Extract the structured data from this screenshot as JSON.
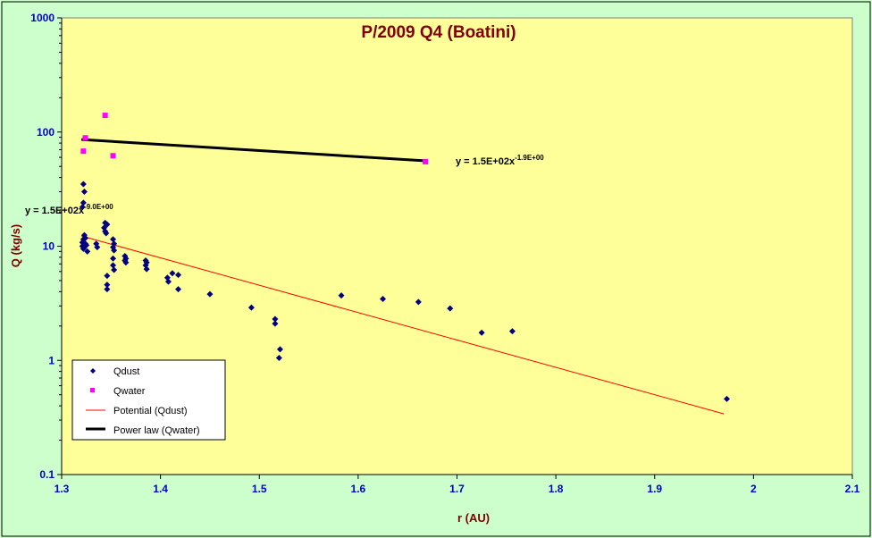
{
  "chart_data": {
    "type": "scatter",
    "title": "P/2009 Q4 (Boatini)",
    "xlabel": "r (AU)",
    "ylabel": "Q (kg/s)",
    "xlim": [
      1.3,
      2.1
    ],
    "ylim": [
      0.1,
      1000
    ],
    "yscale": "log",
    "xticks": [
      "1.3",
      "1.4",
      "1.5",
      "1.6",
      "1.7",
      "1.8",
      "1.9",
      "2",
      "2.1"
    ],
    "yticks": [
      "0.1",
      "1",
      "10",
      "100",
      "1000"
    ],
    "grid": false,
    "legend_position": "bottom-left",
    "colors": {
      "plot_bg": "#ffff99",
      "outer_bg": "#ccffcc",
      "title": "#800000",
      "tick_labels": "#0000cc",
      "qdust": "#000080",
      "qwater": "#ff00ff",
      "fit_dust": "#ff0000",
      "fit_water": "#000000"
    },
    "series": [
      {
        "name": "Qdust",
        "marker": "diamond",
        "points": [
          [
            1.322,
            35
          ],
          [
            1.323,
            30
          ],
          [
            1.322,
            24
          ],
          [
            1.321,
            22
          ],
          [
            1.323,
            12.5
          ],
          [
            1.322,
            11.5
          ],
          [
            1.321,
            10.8
          ],
          [
            1.324,
            11.8
          ],
          [
            1.325,
            10.2
          ],
          [
            1.321,
            10
          ],
          [
            1.323,
            9.8
          ],
          [
            1.322,
            9.5
          ],
          [
            1.326,
            9
          ],
          [
            1.324,
            10.5
          ],
          [
            1.335,
            10.5
          ],
          [
            1.336,
            9.8
          ],
          [
            1.344,
            16
          ],
          [
            1.346,
            15.5
          ],
          [
            1.343,
            14.5
          ],
          [
            1.344,
            13.5
          ],
          [
            1.345,
            13
          ],
          [
            1.352,
            11.5
          ],
          [
            1.353,
            10.5
          ],
          [
            1.352,
            9.8
          ],
          [
            1.353,
            9.2
          ],
          [
            1.352,
            7.8
          ],
          [
            1.352,
            6.8
          ],
          [
            1.353,
            6.2
          ],
          [
            1.346,
            5.5
          ],
          [
            1.346,
            4.6
          ],
          [
            1.346,
            4.2
          ],
          [
            1.364,
            8.2
          ],
          [
            1.365,
            7.8
          ],
          [
            1.364,
            7.5
          ],
          [
            1.365,
            7.2
          ],
          [
            1.385,
            7.5
          ],
          [
            1.386,
            7.2
          ],
          [
            1.385,
            6.8
          ],
          [
            1.386,
            6.3
          ],
          [
            1.407,
            5.3
          ],
          [
            1.412,
            5.8
          ],
          [
            1.408,
            4.9
          ],
          [
            1.418,
            5.6
          ],
          [
            1.418,
            4.2
          ],
          [
            1.45,
            3.8
          ],
          [
            1.492,
            2.9
          ],
          [
            1.516,
            2.3
          ],
          [
            1.516,
            2.1
          ],
          [
            1.521,
            1.25
          ],
          [
            1.52,
            1.05
          ],
          [
            1.583,
            3.7
          ],
          [
            1.625,
            3.45
          ],
          [
            1.661,
            3.25
          ],
          [
            1.693,
            2.85
          ],
          [
            1.725,
            1.75
          ],
          [
            1.756,
            1.8
          ],
          [
            1.973,
            0.46
          ]
        ]
      },
      {
        "name": "Qwater",
        "marker": "square",
        "points": [
          [
            1.324,
            89
          ],
          [
            1.322,
            68
          ],
          [
            1.344,
            140
          ],
          [
            1.352,
            62
          ],
          [
            1.668,
            55
          ]
        ]
      },
      {
        "name": "Potential (Qdust)",
        "line": true,
        "points": [
          [
            1.32,
            12.3
          ],
          [
            1.97,
            0.34
          ]
        ]
      },
      {
        "name": "Power law (Qwater)",
        "line": true,
        "points": [
          [
            1.32,
            86
          ],
          [
            1.667,
            56
          ]
        ]
      }
    ],
    "annotations": [
      {
        "text_main": "y = 1.5E+02x",
        "text_exp": "-1.9E+00",
        "near": "Power law (Qwater)"
      },
      {
        "text_main": "y = 1.5E+02x",
        "text_exp": "-9.0E+00",
        "near": "Potential (Qdust)"
      }
    ]
  }
}
